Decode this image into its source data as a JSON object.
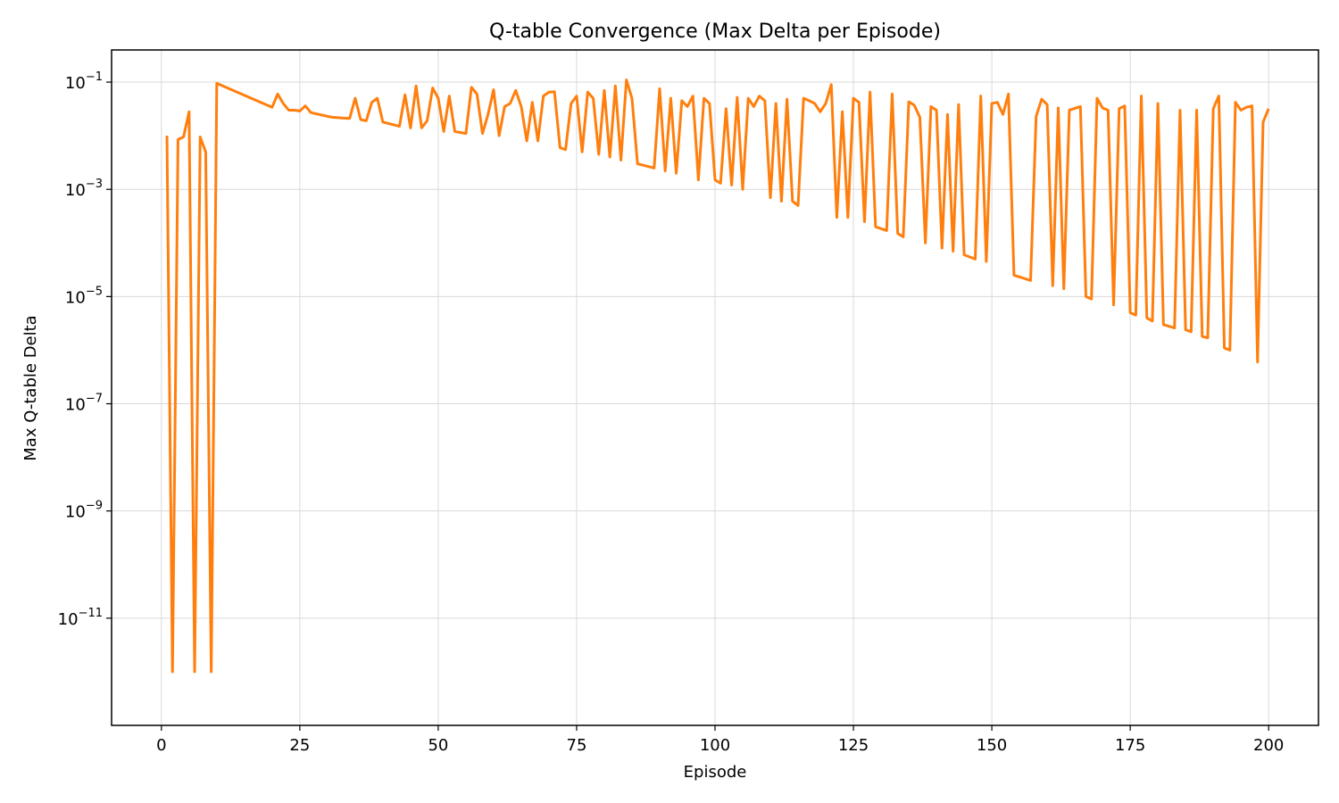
{
  "chart_data": {
    "type": "line",
    "title": "Q-table Convergence (Max Delta per Episode)",
    "xlabel": "Episode",
    "ylabel": "Max Q-table Delta",
    "xlim": [
      -9,
      209
    ],
    "ylim_log10": [
      -13.0,
      -0.4
    ],
    "y_scale": "log",
    "grid": true,
    "line_color": "#ff7f0e",
    "x_ticks": [
      0,
      25,
      50,
      75,
      100,
      125,
      150,
      175,
      200
    ],
    "y_ticks": [
      {
        "exp": -1,
        "label": "-1"
      },
      {
        "exp": -3,
        "label": "-3"
      },
      {
        "exp": -5,
        "label": "-5"
      },
      {
        "exp": -7,
        "label": "-7"
      },
      {
        "exp": -9,
        "label": "-9"
      },
      {
        "exp": -11,
        "label": "-11"
      }
    ],
    "series": [
      {
        "values": [
          [
            1,
            0.01
          ],
          [
            2,
            1e-12
          ],
          [
            3,
            0.0085
          ],
          [
            4,
            0.0095
          ],
          [
            5,
            0.028
          ],
          [
            6,
            1e-12
          ],
          [
            7,
            0.0095
          ],
          [
            8,
            0.005
          ],
          [
            9,
            1e-12
          ],
          [
            10,
            0.095
          ],
          [
            20,
            0.034
          ],
          [
            21,
            0.06
          ],
          [
            22,
            0.04
          ],
          [
            23,
            0.03
          ],
          [
            24,
            0.03
          ],
          [
            25,
            0.029
          ],
          [
            26,
            0.036
          ],
          [
            27,
            0.027
          ],
          [
            30,
            0.023
          ],
          [
            31,
            0.022
          ],
          [
            34,
            0.021
          ],
          [
            35,
            0.05
          ],
          [
            36,
            0.02
          ],
          [
            37,
            0.019
          ],
          [
            38,
            0.042
          ],
          [
            39,
            0.05
          ],
          [
            40,
            0.018
          ],
          [
            43,
            0.015
          ],
          [
            44,
            0.058
          ],
          [
            45,
            0.014
          ],
          [
            46,
            0.085
          ],
          [
            47,
            0.014
          ],
          [
            48,
            0.019
          ],
          [
            49,
            0.078
          ],
          [
            50,
            0.05
          ],
          [
            51,
            0.012
          ],
          [
            52,
            0.055
          ],
          [
            53,
            0.012
          ],
          [
            55,
            0.011
          ],
          [
            56,
            0.08
          ],
          [
            57,
            0.06
          ],
          [
            58,
            0.011
          ],
          [
            59,
            0.025
          ],
          [
            60,
            0.072
          ],
          [
            61,
            0.01
          ],
          [
            62,
            0.035
          ],
          [
            63,
            0.04
          ],
          [
            64,
            0.07
          ],
          [
            65,
            0.035
          ],
          [
            66,
            0.008
          ],
          [
            67,
            0.042
          ],
          [
            68,
            0.008
          ],
          [
            69,
            0.055
          ],
          [
            70,
            0.065
          ],
          [
            71,
            0.066
          ],
          [
            72,
            0.006
          ],
          [
            73,
            0.0055
          ],
          [
            74,
            0.04
          ],
          [
            75,
            0.055
          ],
          [
            76,
            0.005
          ],
          [
            77,
            0.065
          ],
          [
            78,
            0.05
          ],
          [
            79,
            0.0045
          ],
          [
            80,
            0.07
          ],
          [
            81,
            0.004
          ],
          [
            82,
            0.085
          ],
          [
            83,
            0.0035
          ],
          [
            84,
            0.11
          ],
          [
            85,
            0.05
          ],
          [
            86,
            0.003
          ],
          [
            89,
            0.0025
          ],
          [
            90,
            0.075
          ],
          [
            91,
            0.0022
          ],
          [
            92,
            0.05
          ],
          [
            93,
            0.002
          ],
          [
            94,
            0.045
          ],
          [
            95,
            0.035
          ],
          [
            96,
            0.055
          ],
          [
            97,
            0.0015
          ],
          [
            98,
            0.05
          ],
          [
            99,
            0.04
          ],
          [
            100,
            0.0015
          ],
          [
            101,
            0.0013
          ],
          [
            102,
            0.032
          ],
          [
            103,
            0.0012
          ],
          [
            104,
            0.052
          ],
          [
            105,
            0.001
          ],
          [
            106,
            0.05
          ],
          [
            107,
            0.035
          ],
          [
            108,
            0.055
          ],
          [
            109,
            0.045
          ],
          [
            110,
            0.0007
          ],
          [
            111,
            0.04
          ],
          [
            112,
            0.0006
          ],
          [
            113,
            0.048
          ],
          [
            114,
            0.0006
          ],
          [
            115,
            0.0005
          ],
          [
            116,
            0.05
          ],
          [
            117,
            0.045
          ],
          [
            118,
            0.04
          ],
          [
            119,
            0.028
          ],
          [
            120,
            0.04
          ],
          [
            121,
            0.09
          ],
          [
            122,
            0.0003
          ],
          [
            123,
            0.028
          ],
          [
            124,
            0.0003
          ],
          [
            125,
            0.05
          ],
          [
            126,
            0.042
          ],
          [
            127,
            0.00025
          ],
          [
            128,
            0.065
          ],
          [
            129,
            0.0002
          ],
          [
            131,
            0.00017
          ],
          [
            132,
            0.06
          ],
          [
            133,
            0.00015
          ],
          [
            134,
            0.00013
          ],
          [
            135,
            0.043
          ],
          [
            136,
            0.037
          ],
          [
            137,
            0.022
          ],
          [
            138,
            0.0001
          ],
          [
            139,
            0.035
          ],
          [
            140,
            0.03
          ],
          [
            141,
            8e-05
          ],
          [
            142,
            0.025
          ],
          [
            143,
            7e-05
          ],
          [
            144,
            0.038
          ],
          [
            145,
            6e-05
          ],
          [
            147,
            5e-05
          ],
          [
            148,
            0.055
          ],
          [
            149,
            4.5e-05
          ],
          [
            150,
            0.04
          ],
          [
            151,
            0.042
          ],
          [
            152,
            0.025
          ],
          [
            153,
            0.06
          ],
          [
            154,
            2.5e-05
          ],
          [
            157,
            2e-05
          ],
          [
            158,
            0.023
          ],
          [
            159,
            0.048
          ],
          [
            160,
            0.038
          ],
          [
            161,
            1.6e-05
          ],
          [
            162,
            0.033
          ],
          [
            163,
            1.4e-05
          ],
          [
            164,
            0.03
          ],
          [
            166,
            0.035
          ],
          [
            167,
            1e-05
          ],
          [
            168,
            9e-06
          ],
          [
            169,
            0.05
          ],
          [
            170,
            0.033
          ],
          [
            171,
            0.03
          ],
          [
            172,
            7e-06
          ],
          [
            173,
            0.032
          ],
          [
            174,
            0.036
          ],
          [
            175,
            5e-06
          ],
          [
            176,
            4.5e-06
          ],
          [
            177,
            0.055
          ],
          [
            178,
            4e-06
          ],
          [
            179,
            3.5e-06
          ],
          [
            180,
            0.04
          ],
          [
            181,
            3e-06
          ],
          [
            183,
            2.6e-06
          ],
          [
            184,
            0.03
          ],
          [
            185,
            2.4e-06
          ],
          [
            186,
            2.2e-06
          ],
          [
            187,
            0.03
          ],
          [
            188,
            1.8e-06
          ],
          [
            189,
            1.7e-06
          ],
          [
            190,
            0.032
          ],
          [
            191,
            0.055
          ],
          [
            192,
            1.1e-06
          ],
          [
            193,
            1e-06
          ],
          [
            194,
            0.042
          ],
          [
            195,
            0.03
          ],
          [
            196,
            0.034
          ],
          [
            197,
            0.036
          ],
          [
            198,
            6e-07
          ],
          [
            199,
            0.018
          ],
          [
            200,
            0.032
          ]
        ]
      }
    ]
  }
}
